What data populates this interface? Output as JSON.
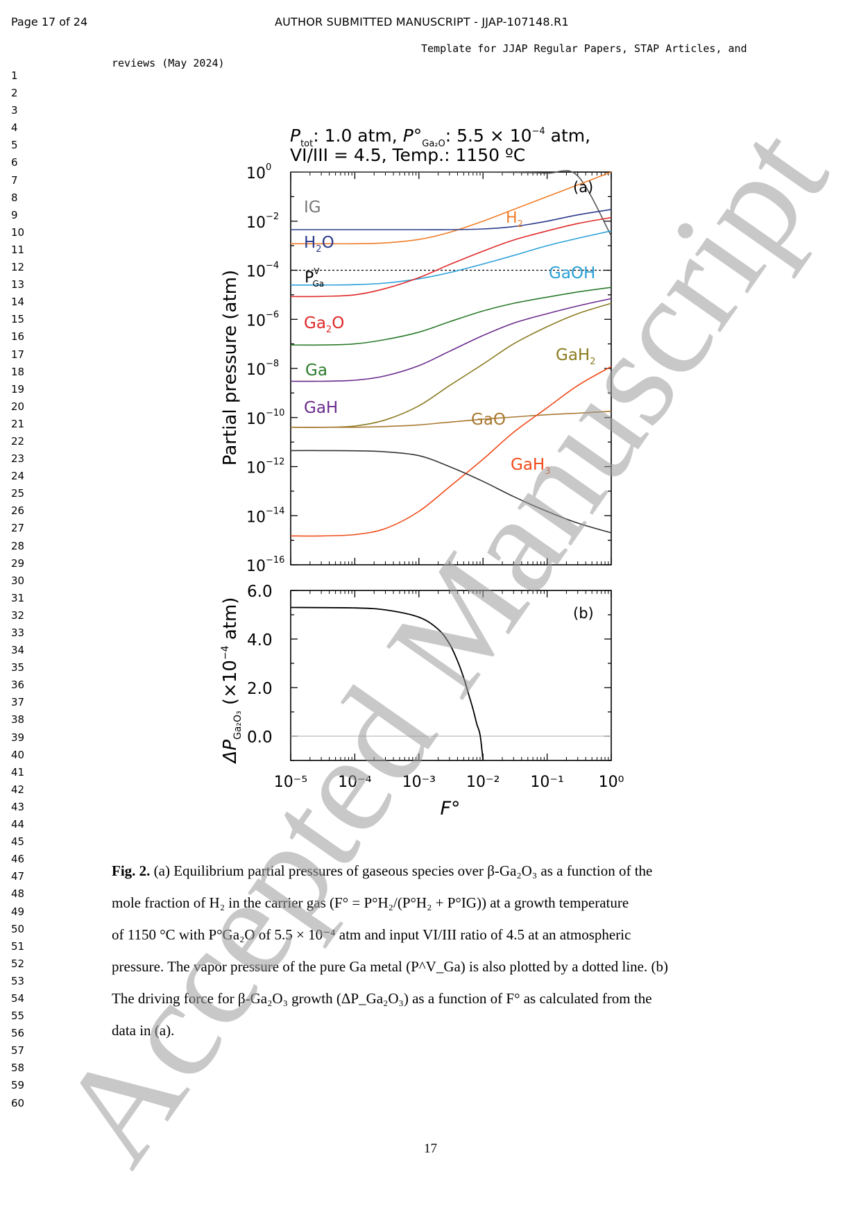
{
  "header": {
    "page_label": "Page 17 of 24",
    "manuscript_label": "AUTHOR SUBMITTED MANUSCRIPT - JJAP-107148.R1",
    "template_line1": "Template for JJAP Regular Papers, STAP Articles, and",
    "template_line2": "reviews (May 2024)"
  },
  "line_numbers": [
    "1",
    "2",
    "3",
    "4",
    "5",
    "6",
    "7",
    "8",
    "9",
    "10",
    "11",
    "12",
    "13",
    "14",
    "15",
    "16",
    "17",
    "18",
    "19",
    "20",
    "21",
    "22",
    "23",
    "24",
    "25",
    "26",
    "27",
    "28",
    "29",
    "30",
    "31",
    "32",
    "33",
    "34",
    "35",
    "36",
    "37",
    "38",
    "39",
    "40",
    "41",
    "42",
    "43",
    "44",
    "45",
    "46",
    "47",
    "48",
    "49",
    "50",
    "51",
    "52",
    "53",
    "54",
    "55",
    "56",
    "57",
    "58",
    "59",
    "60"
  ],
  "figure": {
    "conditions_line1_a": "P",
    "conditions_line1_a_sub": "tot",
    "conditions_line1_b": ": 1.0 atm, ",
    "conditions_line1_c": "P°",
    "conditions_line1_c_sub": "Ga₂O",
    "conditions_line1_d": ": 5.5 × 10",
    "conditions_line1_d_sup": "−4",
    "conditions_line1_e": " atm,",
    "conditions_line2": "VI/III = 4.5, Temp.: 1150 ºC",
    "panel_a_label": "(a)",
    "panel_b_label": "(b)",
    "ylabel_a": "Partial pressure (atm)",
    "ylabel_b_delta": "ΔP",
    "ylabel_b_sub": "Ga₂O₃",
    "ylabel_b_rest": " (×10",
    "ylabel_b_sup": "−4",
    "ylabel_b_end": " atm)",
    "xlabel": "F°",
    "ga_vapor_label": "P",
    "ga_vapor_sup": "V",
    "ga_vapor_sub": "Ga"
  },
  "chart_data": [
    {
      "type": "line",
      "panel": "(a)",
      "xscale": "log",
      "yscale": "log",
      "xlim": [
        1e-05,
        1
      ],
      "ylim": [
        1e-16,
        1
      ],
      "ylabel": "Partial pressure (atm)",
      "x_tick_labels": [
        "10⁻⁵",
        "10⁻⁴",
        "10⁻³",
        "10⁻²",
        "10⁻¹",
        "10⁰"
      ],
      "y_ticks": [
        {
          "mant": "10",
          "exp": "0"
        },
        {
          "mant": "10",
          "exp": "−2"
        },
        {
          "mant": "10",
          "exp": "−4"
        },
        {
          "mant": "10",
          "exp": "−6"
        },
        {
          "mant": "10",
          "exp": "−8"
        },
        {
          "mant": "10",
          "exp": "−10"
        },
        {
          "mant": "10",
          "exp": "−12"
        },
        {
          "mant": "10",
          "exp": "−14"
        },
        {
          "mant": "10",
          "exp": "−16"
        }
      ],
      "x": [
        1e-05,
        3e-05,
        0.0001,
        0.0003,
        0.001,
        0.003,
        0.01,
        0.03,
        0.1,
        0.3,
        1
      ],
      "series": [
        {
          "name": "IG",
          "color": "#555555",
          "label_parts": [
            "IG"
          ],
          "values": [
            1.0,
            1.0,
            1.0,
            1.0,
            1.0,
            0.997,
            0.99,
            0.97,
            0.9,
            0.7,
            0.0025
          ]
        },
        {
          "name": "H₂",
          "color": "#f07d28",
          "label_parts": [
            "H",
            "2"
          ],
          "values": [
            0.0012,
            0.0012,
            0.0012,
            0.0013,
            0.0018,
            0.0035,
            0.01,
            0.03,
            0.1,
            0.3,
            1.0
          ]
        },
        {
          "name": "H₂O",
          "color": "#2a3a8c",
          "label_parts": [
            "H",
            "2",
            "O"
          ],
          "values": [
            0.0045,
            0.0045,
            0.0045,
            0.0045,
            0.0045,
            0.0045,
            0.0048,
            0.006,
            0.01,
            0.018,
            0.03
          ]
        },
        {
          "name": "GaOH",
          "color": "#2aa0d8",
          "label_parts": [
            "GaOH"
          ],
          "values": [
            2.5e-05,
            2.5e-05,
            2.6e-05,
            3e-05,
            4.5e-05,
            8e-05,
            0.00018,
            0.0004,
            0.001,
            0.002,
            0.004
          ]
        },
        {
          "name": "Ga₂O",
          "color": "#e02828",
          "label_parts": [
            "Ga",
            "2",
            "O"
          ],
          "values": [
            8.5e-06,
            8.6e-06,
            1e-05,
            1.8e-05,
            5e-05,
            0.00017,
            0.0006,
            0.0017,
            0.004,
            0.008,
            0.014
          ]
        },
        {
          "name": "Ga",
          "color": "#2a7a2a",
          "label_parts": [
            "Ga"
          ],
          "values": [
            9e-08,
            9e-08,
            1e-07,
            1.5e-07,
            3e-07,
            8e-07,
            2.2e-06,
            4.5e-06,
            8e-06,
            1.3e-05,
            2e-05
          ]
        },
        {
          "name": "GaH",
          "color": "#6a2a8c",
          "label_parts": [
            "GaH"
          ],
          "values": [
            3e-09,
            3e-09,
            3.3e-09,
            5e-09,
            1.3e-08,
            5e-08,
            2.2e-07,
            7e-07,
            1.7e-06,
            3.5e-06,
            7e-06
          ]
        },
        {
          "name": "GaH₂",
          "color": "#8a7a20",
          "label_parts": [
            "GaH",
            "2"
          ],
          "values": [
            4e-11,
            4e-11,
            4.5e-11,
            8e-11,
            3e-10,
            2e-09,
            1.5e-08,
            1e-07,
            5e-07,
            1.7e-06,
            4.5e-06
          ]
        },
        {
          "name": "GaO",
          "color": "#a87830",
          "label_parts": [
            "GaO"
          ],
          "values": [
            4e-11,
            4e-11,
            4e-11,
            4.3e-11,
            5e-11,
            6.5e-11,
            8.5e-11,
            1.05e-10,
            1.3e-10,
            1.5e-10,
            1.8e-10
          ]
        },
        {
          "name": "GaH₃",
          "color": "#f04a18",
          "label_parts": [
            "GaH",
            "3"
          ],
          "values": [
            1.5e-15,
            1.5e-15,
            1.7e-15,
            3e-15,
            1.5e-14,
            1.5e-13,
            2e-12,
            2.5e-11,
            2.5e-10,
            2e-09,
            1.2e-08
          ]
        },
        {
          "name": "",
          "color": "#333333",
          "label_parts": [],
          "values": [
            4.5e-12,
            4.5e-12,
            4.4e-12,
            4e-12,
            2.8e-12,
            1e-12,
            2.5e-13,
            6e-14,
            1.5e-14,
            5e-15,
            2e-15
          ]
        }
      ],
      "reference_line": {
        "name": "P^V_Ga",
        "value": 0.0001,
        "style": "dotted"
      }
    },
    {
      "type": "line",
      "panel": "(b)",
      "xscale": "log",
      "xlim": [
        1e-05,
        1
      ],
      "ylim": [
        -1.0,
        6.0
      ],
      "xlabel": "F°",
      "y_tick_labels": [
        "6.0",
        "4.0",
        "2.0",
        "0.0"
      ],
      "y_ticks": [
        6.0,
        4.0,
        2.0,
        0.0
      ],
      "x": [
        1e-05,
        0.0001,
        0.0003,
        0.001,
        0.002,
        0.003,
        0.004,
        0.005,
        0.006,
        0.007,
        0.008,
        0.009,
        0.01
      ],
      "series": [
        {
          "name": "",
          "color": "#000000",
          "values": [
            5.3,
            5.28,
            5.2,
            4.9,
            4.4,
            3.8,
            3.1,
            2.4,
            1.7,
            1.1,
            0.5,
            0.05,
            -1.0
          ]
        }
      ]
    }
  ],
  "caption": {
    "fig_label": "Fig. 2.",
    "line1": " (a) Equilibrium partial pressures of gaseous species over β-Ga₂O₃ as a function of the",
    "line2": "mole fraction of H₂ in the carrier gas (F° = P°H₂/(P°H₂ + P°IG)) at a growth temperature",
    "line3": "of 1150 °C with P°Ga₂O of 5.5 × 10⁻⁴ atm and input VI/III ratio of 4.5 at an atmospheric",
    "line4": "pressure. The vapor pressure of the pure Ga metal (P^V_Ga) is also plotted by a dotted line. (b)",
    "line5": "The driving force for β-Ga₂O₃ growth (ΔP_Ga₂O₃) as a function of F° as calculated from the",
    "line6": "data in (a)."
  },
  "page_number": "17",
  "watermark": "Accepted Manuscript"
}
